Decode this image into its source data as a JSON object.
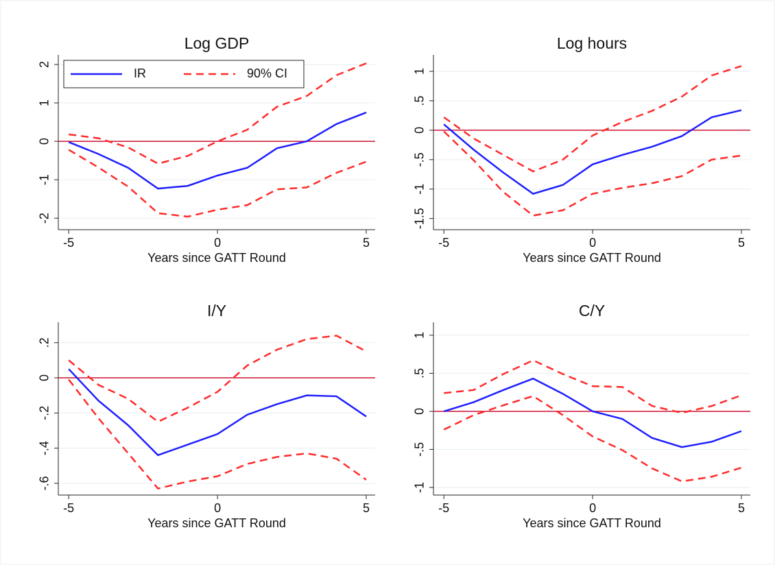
{
  "chart_data": [
    {
      "type": "line",
      "title": "Log GDP",
      "xlabel": "Years since GATT Round",
      "x": [
        -5,
        -4,
        -3,
        -2,
        -1,
        0,
        1,
        2,
        3,
        4,
        5
      ],
      "xlim": [
        -5.35,
        5.3
      ],
      "xticks": [
        -5,
        0,
        5
      ],
      "ylim": [
        -2.3,
        2.25
      ],
      "yticks": [
        2,
        1,
        0,
        -1,
        -2
      ],
      "grid": true,
      "hline": 0,
      "hline_color": "#cc1133",
      "legend": "top-left",
      "series": [
        {
          "name": "IR",
          "color": "#1f1fff",
          "style": "solid",
          "values": [
            -0.02,
            -0.33,
            -0.69,
            -1.23,
            -1.16,
            -0.89,
            -0.69,
            -0.18,
            0.0,
            0.45,
            0.75
          ]
        },
        {
          "name": "90% CI",
          "color": "#ff2a2a",
          "style": "dashed",
          "values": [
            0.18,
            0.08,
            -0.16,
            -0.58,
            -0.38,
            0.0,
            0.3,
            0.9,
            1.18,
            1.72,
            2.03
          ]
        },
        {
          "color": "#ff2a2a",
          "style": "dashed",
          "values": [
            -0.22,
            -0.68,
            -1.18,
            -1.87,
            -1.96,
            -1.78,
            -1.66,
            -1.25,
            -1.2,
            -0.82,
            -0.53
          ]
        }
      ]
    },
    {
      "type": "line",
      "title": "Log hours",
      "xlabel": "Years since GATT Round",
      "x": [
        -5,
        -4,
        -3,
        -2,
        -1,
        0,
        1,
        2,
        3,
        4,
        5
      ],
      "xlim": [
        -5.35,
        5.3
      ],
      "xticks": [
        -5,
        0,
        5
      ],
      "ylim": [
        -1.69,
        1.28
      ],
      "yticks": [
        1,
        {
          "value": 0.5,
          "label": ".5"
        },
        0,
        {
          "value": -0.5,
          "label": "-.5"
        },
        -1,
        -1.5
      ],
      "grid": true,
      "hline": 0,
      "hline_color": "#cc1133",
      "series": [
        {
          "color": "#1f1fff",
          "style": "solid",
          "values": [
            0.1,
            -0.33,
            -0.72,
            -1.08,
            -0.93,
            -0.58,
            -0.42,
            -0.28,
            -0.1,
            0.22,
            0.34
          ]
        },
        {
          "color": "#ff2a2a",
          "style": "dashed",
          "values": [
            0.22,
            -0.14,
            -0.42,
            -0.7,
            -0.5,
            -0.09,
            0.14,
            0.33,
            0.57,
            0.93,
            1.09
          ]
        },
        {
          "color": "#ff2a2a",
          "style": "dashed",
          "values": [
            -0.02,
            -0.51,
            -1.05,
            -1.45,
            -1.36,
            -1.08,
            -0.98,
            -0.9,
            -0.78,
            -0.5,
            -0.43
          ]
        }
      ]
    },
    {
      "type": "line",
      "title": "I/Y",
      "xlabel": "Years since GATT Round",
      "x": [
        -5,
        -4,
        -3,
        -2,
        -1,
        0,
        1,
        2,
        3,
        4,
        5
      ],
      "xlim": [
        -5.35,
        5.3
      ],
      "xticks": [
        -5,
        0,
        5
      ],
      "ylim": [
        -0.667,
        0.316
      ],
      "yticks": [
        {
          "value": 0.2,
          "label": ".2"
        },
        0,
        {
          "value": -0.2,
          "label": "-.2"
        },
        {
          "value": -0.4,
          "label": "-.4"
        },
        {
          "value": -0.6,
          "label": "-.6"
        }
      ],
      "grid": true,
      "hline": 0,
      "hline_color": "#cc1133",
      "series": [
        {
          "color": "#1f1fff",
          "style": "solid",
          "values": [
            0.05,
            -0.13,
            -0.27,
            -0.44,
            -0.38,
            -0.32,
            -0.21,
            -0.15,
            -0.1,
            -0.105,
            -0.22
          ]
        },
        {
          "color": "#ff2a2a",
          "style": "dashed",
          "values": [
            0.1,
            -0.04,
            -0.12,
            -0.25,
            -0.17,
            -0.08,
            0.07,
            0.16,
            0.22,
            0.24,
            0.15
          ]
        },
        {
          "color": "#ff2a2a",
          "style": "dashed",
          "values": [
            -0.01,
            -0.23,
            -0.43,
            -0.63,
            -0.59,
            -0.56,
            -0.49,
            -0.45,
            -0.43,
            -0.46,
            -0.58
          ]
        }
      ]
    },
    {
      "type": "line",
      "title": "C/Y",
      "xlabel": "Years since GATT Round",
      "x": [
        -5,
        -4,
        -3,
        -2,
        -1,
        0,
        1,
        2,
        3,
        4,
        5
      ],
      "xlim": [
        -5.35,
        5.3
      ],
      "xticks": [
        -5,
        0,
        5
      ],
      "ylim": [
        -1.1,
        1.17
      ],
      "yticks": [
        1,
        {
          "value": 0.5,
          "label": ".5"
        },
        0,
        {
          "value": -0.5,
          "label": "-.5"
        },
        -1
      ],
      "grid": true,
      "hline": 0,
      "hline_color": "#cc1133",
      "series": [
        {
          "color": "#1f1fff",
          "style": "solid",
          "values": [
            0,
            0.12,
            0.28,
            0.43,
            0.23,
            0,
            -0.1,
            -0.35,
            -0.47,
            -0.4,
            -0.26
          ]
        },
        {
          "color": "#ff2a2a",
          "style": "dashed",
          "values": [
            0.24,
            0.28,
            0.49,
            0.67,
            0.49,
            0.33,
            0.32,
            0.07,
            -0.02,
            0.07,
            0.21
          ]
        },
        {
          "color": "#ff2a2a",
          "style": "dashed",
          "values": [
            -0.24,
            -0.05,
            0.08,
            0.2,
            -0.05,
            -0.33,
            -0.51,
            -0.75,
            -0.92,
            -0.86,
            -0.74
          ]
        }
      ]
    }
  ]
}
